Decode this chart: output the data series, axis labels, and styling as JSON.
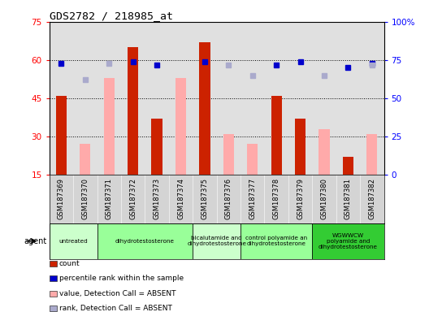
{
  "title": "GDS2782 / 218985_at",
  "samples": [
    "GSM187369",
    "GSM187370",
    "GSM187371",
    "GSM187372",
    "GSM187373",
    "GSM187374",
    "GSM187375",
    "GSM187376",
    "GSM187377",
    "GSM187378",
    "GSM187379",
    "GSM187380",
    "GSM187381",
    "GSM187382"
  ],
  "count_values": [
    46,
    null,
    null,
    65,
    37,
    null,
    67,
    null,
    null,
    46,
    37,
    null,
    22,
    null
  ],
  "absent_value_values": [
    null,
    27,
    53,
    null,
    null,
    53,
    null,
    31,
    27,
    null,
    null,
    33,
    null,
    31
  ],
  "percentile_rank_values": [
    73,
    null,
    null,
    74,
    72,
    null,
    74,
    null,
    null,
    72,
    74,
    null,
    70,
    73
  ],
  "absent_rank_values": [
    null,
    62,
    73,
    null,
    null,
    null,
    null,
    72,
    65,
    null,
    null,
    65,
    null,
    72
  ],
  "groups": [
    {
      "label": "untreated",
      "samples": [
        0,
        1
      ],
      "color": "#ccffcc"
    },
    {
      "label": "dihydrotestosterone",
      "samples": [
        2,
        3,
        4,
        5
      ],
      "color": "#99ff99"
    },
    {
      "label": "bicalutamide and\ndihydrotestosterone",
      "samples": [
        6,
        7
      ],
      "color": "#ccffcc"
    },
    {
      "label": "control polyamide an\ndihydrotestosterone",
      "samples": [
        8,
        9,
        10
      ],
      "color": "#99ff99"
    },
    {
      "label": "WGWWCW\npolyamide and\ndihydrotestosterone",
      "samples": [
        11,
        12,
        13
      ],
      "color": "#33cc33"
    }
  ],
  "ylim_left": [
    15,
    75
  ],
  "ylim_right": [
    0,
    100
  ],
  "yticks_left": [
    15,
    30,
    45,
    60,
    75
  ],
  "yticks_right": [
    0,
    25,
    50,
    75,
    100
  ],
  "bar_color_count": "#cc2200",
  "bar_color_absent": "#ffaaaa",
  "dot_color_rank": "#0000cc",
  "dot_color_absent_rank": "#aaaacc",
  "bg_color_plot": "#e0e0e0",
  "legend_items": [
    {
      "label": "count",
      "color": "#cc2200"
    },
    {
      "label": "percentile rank within the sample",
      "color": "#0000cc"
    },
    {
      "label": "value, Detection Call = ABSENT",
      "color": "#ffaaaa"
    },
    {
      "label": "rank, Detection Call = ABSENT",
      "color": "#aaaacc"
    }
  ],
  "agent_label": "agent",
  "yticklabels_left": [
    "15",
    "30",
    "45",
    "60",
    "75"
  ],
  "yticklabels_right": [
    "0",
    "25",
    "50",
    "75",
    "100%"
  ]
}
